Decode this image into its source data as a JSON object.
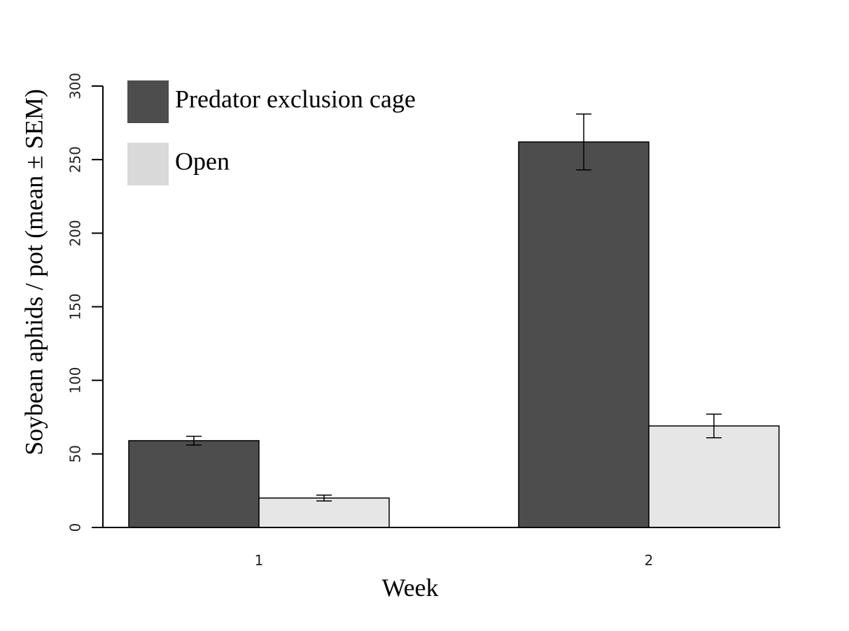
{
  "chart_data": {
    "type": "bar",
    "title": "",
    "xlabel": "Week",
    "ylabel": "Soybean aphids / pot (mean ± SEM)",
    "ylim": [
      0,
      300
    ],
    "yticks": [
      0,
      50,
      100,
      150,
      200,
      250,
      300
    ],
    "categories": [
      "1",
      "2"
    ],
    "series": [
      {
        "name": "Predator exclusion cage",
        "color": "#4d4d4d",
        "values": [
          59,
          262
        ],
        "errors": [
          3,
          19
        ]
      },
      {
        "name": "Open",
        "color": "#e6e6e6",
        "values": [
          20,
          69
        ],
        "errors": [
          2,
          8
        ]
      }
    ],
    "legend_position": "top-left",
    "legend_swatch_colors": [
      "#4d4d4d",
      "#d9d9d9"
    ],
    "grid": false
  }
}
